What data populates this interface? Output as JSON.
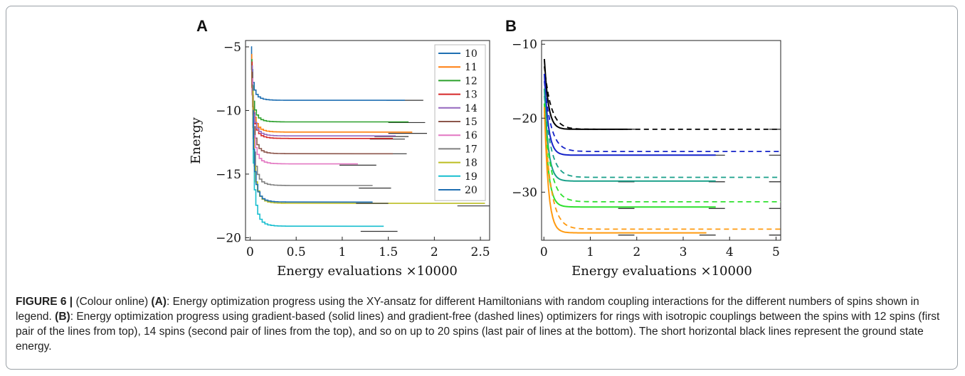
{
  "panels": [
    {
      "letter": "A"
    },
    {
      "letter": "B"
    }
  ],
  "caption": {
    "figure_label": "FIGURE 6 |",
    "part1": " (Colour online) ",
    "label_a": "(A)",
    "text_a": ": Energy optimization progress using the XY-ansatz for different Hamiltonians with random coupling interactions for the different numbers of spins shown in legend. ",
    "label_b": "(B)",
    "text_b": ": Energy optimization progress using gradient-based (solid lines) and gradient-free (dashed lines) optimizers for rings with isotropic couplings between the spins with 12 spins (first pair of the lines from top), 14 spins (second pair of lines from the top), and so on up to 20 spins (last pair of lines at the bottom). The short horizontal black lines represent the ground state energy."
  },
  "chart_data": [
    {
      "type": "line",
      "panel": "A",
      "xlabel": "Energy evaluations ×10000",
      "ylabel": "Energy",
      "xlim": [
        -0.05,
        2.6
      ],
      "ylim": [
        -20.2,
        -4.5
      ],
      "xticks": [
        0,
        0.5,
        1,
        1.5,
        2,
        2.5
      ],
      "xtick_labels": [
        "0",
        "0.5",
        "1",
        "1.5",
        "2",
        "2.5"
      ],
      "yticks": [
        -20,
        -15,
        -10,
        -5
      ],
      "ytick_labels": [
        "−20",
        "−15",
        "−10",
        "−5"
      ],
      "legend_position": "top-right",
      "series": [
        {
          "name": "10",
          "color": "#1f6fb2",
          "start": -5.0,
          "final": -9.2,
          "end_x": 1.68,
          "ref_x": [
            1.48,
            1.88
          ],
          "ref_y": -9.2
        },
        {
          "name": "11",
          "color": "#ff7f0e",
          "start": -5.6,
          "final": -11.7,
          "end_x": 1.76,
          "ref_x": [
            1.5,
            1.92
          ],
          "ref_y": -11.8
        },
        {
          "name": "12",
          "color": "#2ca02c",
          "start": -6.0,
          "final": -10.9,
          "end_x": 1.72,
          "ref_x": [
            1.5,
            1.9
          ],
          "ref_y": -10.95
        },
        {
          "name": "13",
          "color": "#d62728",
          "start": -6.2,
          "final": -12.2,
          "end_x": 1.55,
          "ref_x": [
            1.3,
            1.68
          ],
          "ref_y": -12.25
        },
        {
          "name": "14",
          "color": "#9467bd",
          "start": -6.5,
          "final": -12.0,
          "end_x": 1.58,
          "ref_x": [
            1.35,
            1.72
          ],
          "ref_y": -12.05
        },
        {
          "name": "15",
          "color": "#8c564b",
          "start": -7.0,
          "final": -13.4,
          "end_x": 1.55,
          "ref_x": [
            1.35,
            1.7
          ],
          "ref_y": -13.4
        },
        {
          "name": "16",
          "color": "#e377c2",
          "start": -7.5,
          "final": -14.2,
          "end_x": 1.17,
          "ref_x": [
            0.97,
            1.37
          ],
          "ref_y": -14.3
        },
        {
          "name": "17",
          "color": "#7f7f7f",
          "start": -8.0,
          "final": -15.9,
          "end_x": 1.33,
          "ref_x": [
            1.18,
            1.53
          ],
          "ref_y": -16.1
        },
        {
          "name": "18",
          "color": "#bcbd22",
          "start": -8.5,
          "final": -17.3,
          "end_x": 2.55,
          "ref_x": [
            2.25,
            2.6
          ],
          "ref_y": -17.5
        },
        {
          "name": "19",
          "color": "#17becf",
          "start": -10.5,
          "final": -19.1,
          "end_x": 1.45,
          "ref_x": [
            1.2,
            1.6
          ],
          "ref_y": -19.5
        },
        {
          "name": "20",
          "color": "#1f6fb2",
          "start": -10.0,
          "final": -17.2,
          "end_x": 1.33,
          "ref_x": [
            1.15,
            1.5
          ],
          "ref_y": -17.3
        }
      ]
    },
    {
      "type": "line",
      "panel": "B",
      "xlabel": "Energy evaluations ×10000",
      "ylabel": "",
      "xlim": [
        -0.05,
        5.1
      ],
      "ylim": [
        -36.5,
        -9.5
      ],
      "xticks": [
        0,
        1,
        2,
        3,
        4,
        5
      ],
      "xtick_labels": [
        "0",
        "1",
        "2",
        "3",
        "4",
        "5"
      ],
      "yticks": [
        -30,
        -20,
        -10
      ],
      "ytick_labels": [
        "−30",
        "−20",
        "−10"
      ],
      "series": [
        {
          "spins": 12,
          "color": "#000000",
          "start": -12.0,
          "solid_final": -21.5,
          "solid_end": 1.8,
          "dashed_final": -21.5,
          "dashed_end": 5.1,
          "ref": -21.5
        },
        {
          "spins": 14,
          "color": "#1422c8",
          "start": -14.0,
          "solid_final": -25.0,
          "solid_end": 3.7,
          "dashed_final": -24.5,
          "dashed_end": 5.1,
          "ref": -25.0
        },
        {
          "spins": 16,
          "color": "#1aa08a",
          "start": -16.0,
          "solid_final": -28.5,
          "solid_end": 3.7,
          "dashed_final": -28.0,
          "dashed_end": 5.1,
          "ref": -28.6
        },
        {
          "spins": 18,
          "color": "#2ee02e",
          "start": -18.0,
          "solid_final": -32.0,
          "solid_end": 3.7,
          "dashed_final": -31.3,
          "dashed_end": 5.1,
          "ref": -32.2
        },
        {
          "spins": 20,
          "color": "#ff9a10",
          "start": -18.5,
          "solid_final": -35.5,
          "solid_end": 3.5,
          "dashed_final": -35.0,
          "dashed_end": 5.1,
          "ref": -35.8
        }
      ]
    }
  ]
}
